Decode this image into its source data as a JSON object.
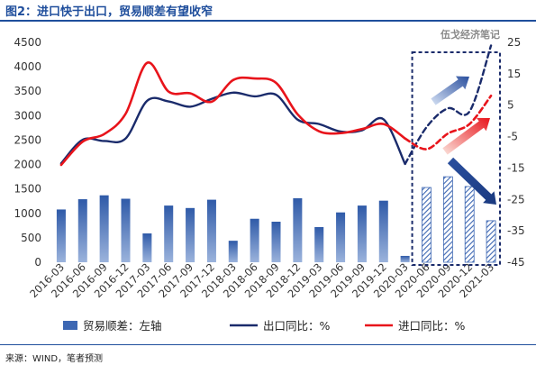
{
  "title": "图2：进口快于出口，贸易顺差有望收窄",
  "watermark": "伍戈经济笔记",
  "source": "来源：WIND，笔者预测",
  "colors": {
    "title": "#1f4e9c",
    "bar": "#3d67b3",
    "export": "#1a2b6b",
    "import": "#e8141b",
    "forecast_box": "#1a2b6b"
  },
  "chart_data": {
    "type": "bar+line",
    "categories": [
      "2016-03",
      "2016-06",
      "2016-09",
      "2016-12",
      "2017-03",
      "2017-06",
      "2017-09",
      "2017-12",
      "2018-03",
      "2018-06",
      "2018-09",
      "2018-12",
      "2019-03",
      "2019-06",
      "2019-09",
      "2019-12",
      "2020-03",
      "2020-06",
      "2020-09",
      "2020-12",
      "2021-03"
    ],
    "forecast_categories": [
      "2020-06",
      "2020-09",
      "2020-12",
      "2021-03"
    ],
    "left_axis": {
      "min": 0,
      "max": 4500,
      "ticks": [
        0,
        500,
        1000,
        1500,
        2000,
        2500,
        3000,
        3500,
        4000,
        4500
      ]
    },
    "right_axis": {
      "min": -45,
      "max": 25,
      "ticks": [
        -45,
        -35,
        -25,
        -15,
        -5,
        5,
        15,
        25
      ]
    },
    "bars": {
      "name": "贸易顺差：左轴",
      "values": [
        1080,
        1290,
        1370,
        1300,
        590,
        1160,
        1110,
        1280,
        440,
        890,
        830,
        1310,
        720,
        1020,
        1160,
        1260,
        130,
        1530,
        1750,
        1550,
        850
      ]
    },
    "series": [
      {
        "name": "出口同比：%",
        "axis": "right",
        "x": [
          0,
          1,
          2,
          3,
          4,
          5,
          6,
          7,
          8,
          9,
          10,
          11,
          12,
          13,
          14,
          15,
          16
        ],
        "values": [
          -13.5,
          -6.0,
          -6.4,
          -5.6,
          6.4,
          6.2,
          4.5,
          7.0,
          9.0,
          7.8,
          8.3,
          0.4,
          -1.0,
          -3.4,
          -3.0,
          0.5,
          -13.7
        ]
      },
      {
        "name": "进口同比：%",
        "axis": "right",
        "x": [
          0,
          1,
          2,
          3,
          4,
          5,
          6,
          7,
          8,
          9,
          10,
          11,
          12,
          13,
          14,
          15,
          16
        ],
        "values": [
          -14.0,
          -6.6,
          -4.2,
          2.3,
          18.5,
          9.3,
          8.8,
          6.1,
          13.0,
          13.5,
          12.1,
          2.1,
          -3.3,
          -3.9,
          -2.6,
          -1.0,
          -5.6
        ]
      },
      {
        "name": "出口同比：%",
        "axis": "right",
        "forecast": true,
        "x": [
          16,
          17,
          18,
          19,
          20
        ],
        "values": [
          -13.7,
          -2.0,
          4.0,
          3.0,
          24.0
        ]
      },
      {
        "name": "进口同比：%",
        "axis": "right",
        "forecast": true,
        "x": [
          16,
          17,
          18,
          19,
          20
        ],
        "values": [
          -5.6,
          -9.0,
          -4.0,
          -1.0,
          8.0
        ]
      }
    ],
    "legend_position": "bottom"
  }
}
